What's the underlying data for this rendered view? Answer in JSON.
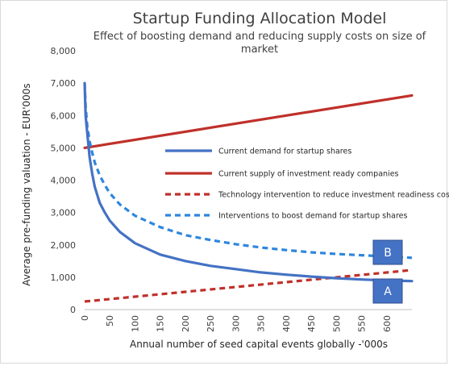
{
  "chart_data": {
    "type": "line",
    "title": "Startup Funding Allocation Model",
    "subtitle_line1": "Effect of boosting demand and reducing supply costs on size of",
    "subtitle_line2": "market",
    "xlabel": "Annual number of seed capital events globally -'000s",
    "ylabel": "Average pre-funding valuation - EUR'000s",
    "xlim": [
      0,
      650
    ],
    "ylim": [
      0,
      8000
    ],
    "x_ticks": [
      "0",
      "50",
      "100",
      "150",
      "200",
      "250",
      "300",
      "350",
      "400",
      "450",
      "500",
      "550",
      "600"
    ],
    "y_ticks": [
      "0",
      "1,000",
      "2,000",
      "3,000",
      "4,000",
      "5,000",
      "6,000",
      "7,000",
      "8,000"
    ],
    "grid": false,
    "legend_position": "center-right",
    "series": [
      {
        "name": "Current demand for startup shares",
        "color": "#4472C4",
        "style": "solid",
        "x": [
          0,
          2,
          5,
          10,
          15,
          20,
          30,
          40,
          50,
          70,
          100,
          150,
          200,
          250,
          300,
          350,
          400,
          450,
          500,
          550,
          600,
          650
        ],
        "y": [
          7000,
          6000,
          5500,
          4700,
          4200,
          3800,
          3300,
          3000,
          2750,
          2400,
          2050,
          1700,
          1500,
          1350,
          1250,
          1150,
          1080,
          1020,
          970,
          930,
          900,
          880
        ]
      },
      {
        "name": "Current supply of investment ready companies",
        "color": "#C0302A",
        "style": "solid",
        "x": [
          0,
          650
        ],
        "y": [
          5000,
          6620
        ]
      },
      {
        "name": "Technology intervention to reduce investment readiness costs",
        "color": "#C0302A",
        "style": "dashed",
        "x": [
          0,
          650
        ],
        "y": [
          250,
          1220
        ]
      },
      {
        "name": "Interventions to boost demand for startup shares",
        "color": "#2E86DE",
        "style": "dashed",
        "x": [
          0,
          2,
          5,
          10,
          15,
          20,
          30,
          40,
          50,
          70,
          100,
          150,
          200,
          250,
          300,
          350,
          400,
          450,
          500,
          550,
          600,
          650
        ],
        "y": [
          7000,
          6300,
          5700,
          5200,
          4850,
          4550,
          4150,
          3850,
          3600,
          3250,
          2900,
          2550,
          2300,
          2150,
          2020,
          1920,
          1840,
          1770,
          1720,
          1680,
          1640,
          1600
        ]
      }
    ],
    "annotations": [
      {
        "label": "B",
        "color": "#4472C4"
      },
      {
        "label": "A",
        "color": "#4472C4"
      }
    ]
  }
}
